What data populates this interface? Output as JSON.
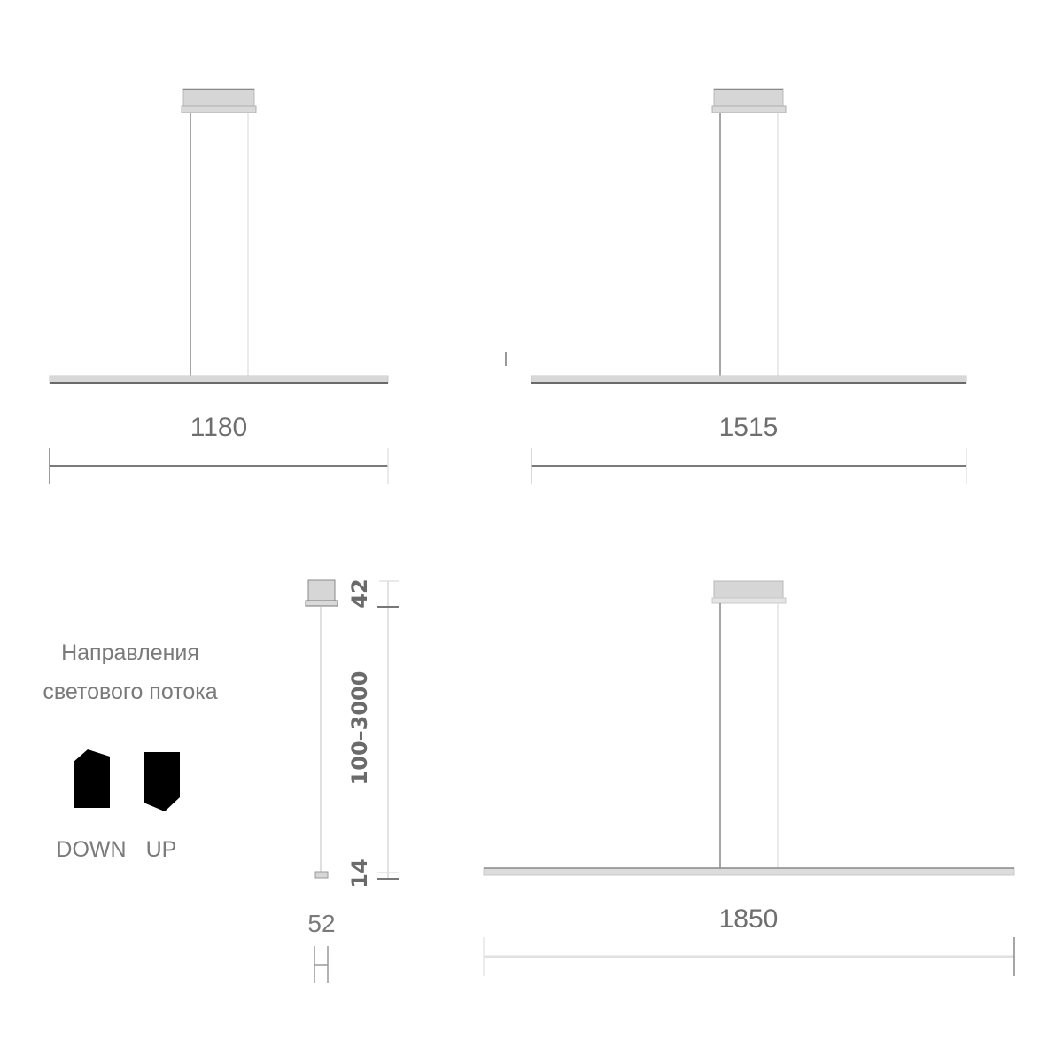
{
  "drawings": [
    {
      "length_label": "1180"
    },
    {
      "length_label": "1515"
    },
    {
      "length_label": "1850"
    }
  ],
  "side_view": {
    "canopy_height": "42",
    "suspension_range": "100–3000",
    "profile_height": "14",
    "profile_width": "52"
  },
  "legend": {
    "title_line1": "Направления",
    "title_line2": "светового потока",
    "down_label": "DOWN",
    "up_label": "UP"
  },
  "colors": {
    "line_dark": "#7a7a7a",
    "line_light": "#e2e2e2",
    "fill_gray": "#d6d6d6",
    "icon_fill": "#000000"
  }
}
